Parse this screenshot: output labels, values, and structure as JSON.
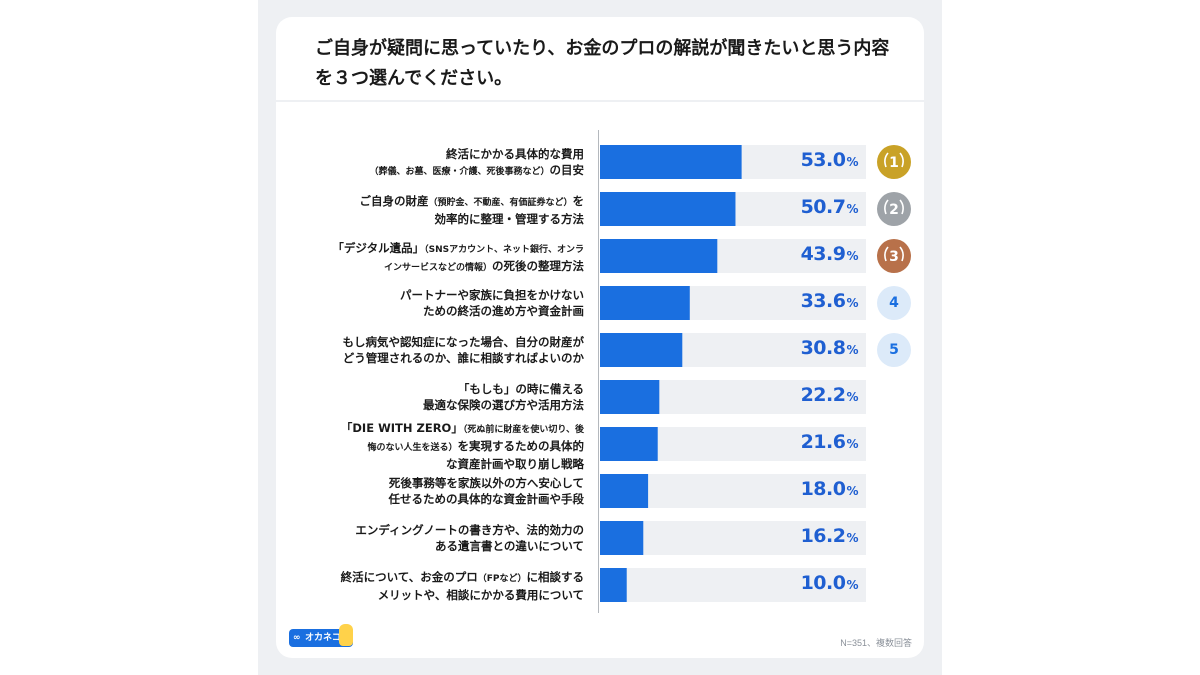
{
  "title": "ご自身が疑問に思っていたり、お金のプロの解説が聞きたいと思う内容を３つ選んでください。",
  "note": "N=351、複数回答",
  "logo": "オカネコ",
  "colors": {
    "bar": "#1a6fe0",
    "track": "#eef0f3",
    "value": "#1f5fd1",
    "gold": "#c9a227",
    "silver": "#9ea3a8",
    "bronze": "#b8714a"
  },
  "chart_data": {
    "type": "bar",
    "orientation": "horizontal",
    "xlim": [
      0,
      100
    ],
    "unit": "%",
    "categories": [
      {
        "line1": "終活にかかる具体的な費用",
        "line2_sm": "（葬儀、お墓、医療・介護、死後事務など）",
        "line2": "の目安"
      },
      {
        "line1": "ご自身の財産",
        "line1_sm": "（預貯金、不動産、有価証券など）",
        "line1b": "を",
        "line2": "効率的に整理・管理する方法"
      },
      {
        "line1": "「デジタル遺品」",
        "line1_sm": "（SNSアカウント、ネット銀行、オンラ",
        "line2_sm": "インサービスなどの情報）",
        "line2": "の死後の整理方法"
      },
      {
        "line1": "パートナーや家族に負担をかけない",
        "line2": "ための終活の進め方や資金計画"
      },
      {
        "line1": "もし病気や認知症になった場合、自分の財産が",
        "line2": "どう管理されるのか、誰に相談すればよいのか"
      },
      {
        "line1": "「もしも」の時に備える",
        "line2": "最適な保険の選び方や活用方法"
      },
      {
        "line1": "「DIE WITH ZERO」",
        "line1_sm": "（死ぬ前に財産を使い切り、後",
        "line2_sm": "悔のない人生を送る）",
        "line2": "を実現するための具体的",
        "line3": "な資産計画や取り崩し戦略"
      },
      {
        "line1": "死後事務等を家族以外の方へ安心して",
        "line2": "任せるための具体的な資金計画や手段"
      },
      {
        "line1": "エンディングノートの書き方や、法的効力の",
        "line2": "ある遺言書との違いについて"
      },
      {
        "line1": "終活について、お金のプロ",
        "line1_sm": "（FPなど）",
        "line1b": "に相談する",
        "line2": "メリットや、相談にかかる費用について"
      }
    ],
    "values": [
      53.0,
      50.7,
      43.9,
      33.6,
      30.8,
      22.2,
      21.6,
      18.0,
      16.2,
      10.0
    ],
    "value_labels": [
      "53.0",
      "50.7",
      "43.9",
      "33.6",
      "30.8",
      "22.2",
      "21.6",
      "18.0",
      "16.2",
      "10.0"
    ],
    "ranks": [
      "1",
      "2",
      "3",
      "4",
      "5"
    ]
  }
}
